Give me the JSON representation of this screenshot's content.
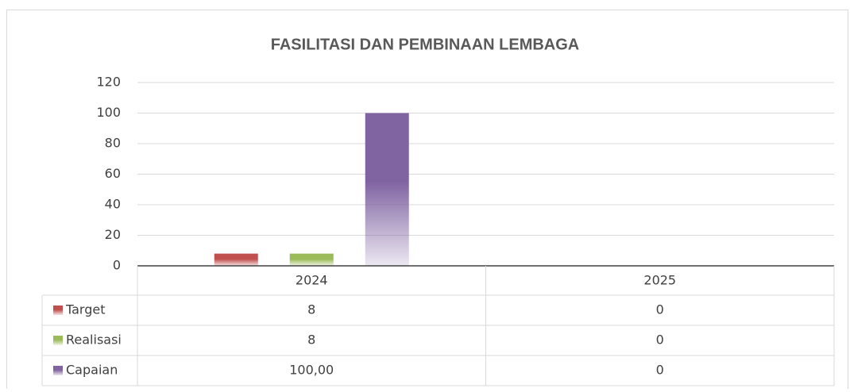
{
  "chart_data": {
    "type": "bar",
    "title": "FASILITASI  DAN  PEMBINAAN  LEMBAGA",
    "categories": [
      "2024",
      "2025"
    ],
    "series": [
      {
        "name": "Target",
        "color": "#c0504d",
        "values": [
          8,
          0
        ]
      },
      {
        "name": "Realisasi",
        "color": "#9bbb59",
        "values": [
          8,
          0
        ]
      },
      {
        "name": "Capaian",
        "color": "#8064a2",
        "values": [
          100,
          0
        ],
        "value_labels": [
          "100,00",
          "0"
        ]
      }
    ],
    "ylim": [
      0,
      120
    ],
    "yticks": [
      0,
      20,
      40,
      60,
      80,
      100,
      120
    ],
    "grid": true,
    "legend": "table"
  }
}
